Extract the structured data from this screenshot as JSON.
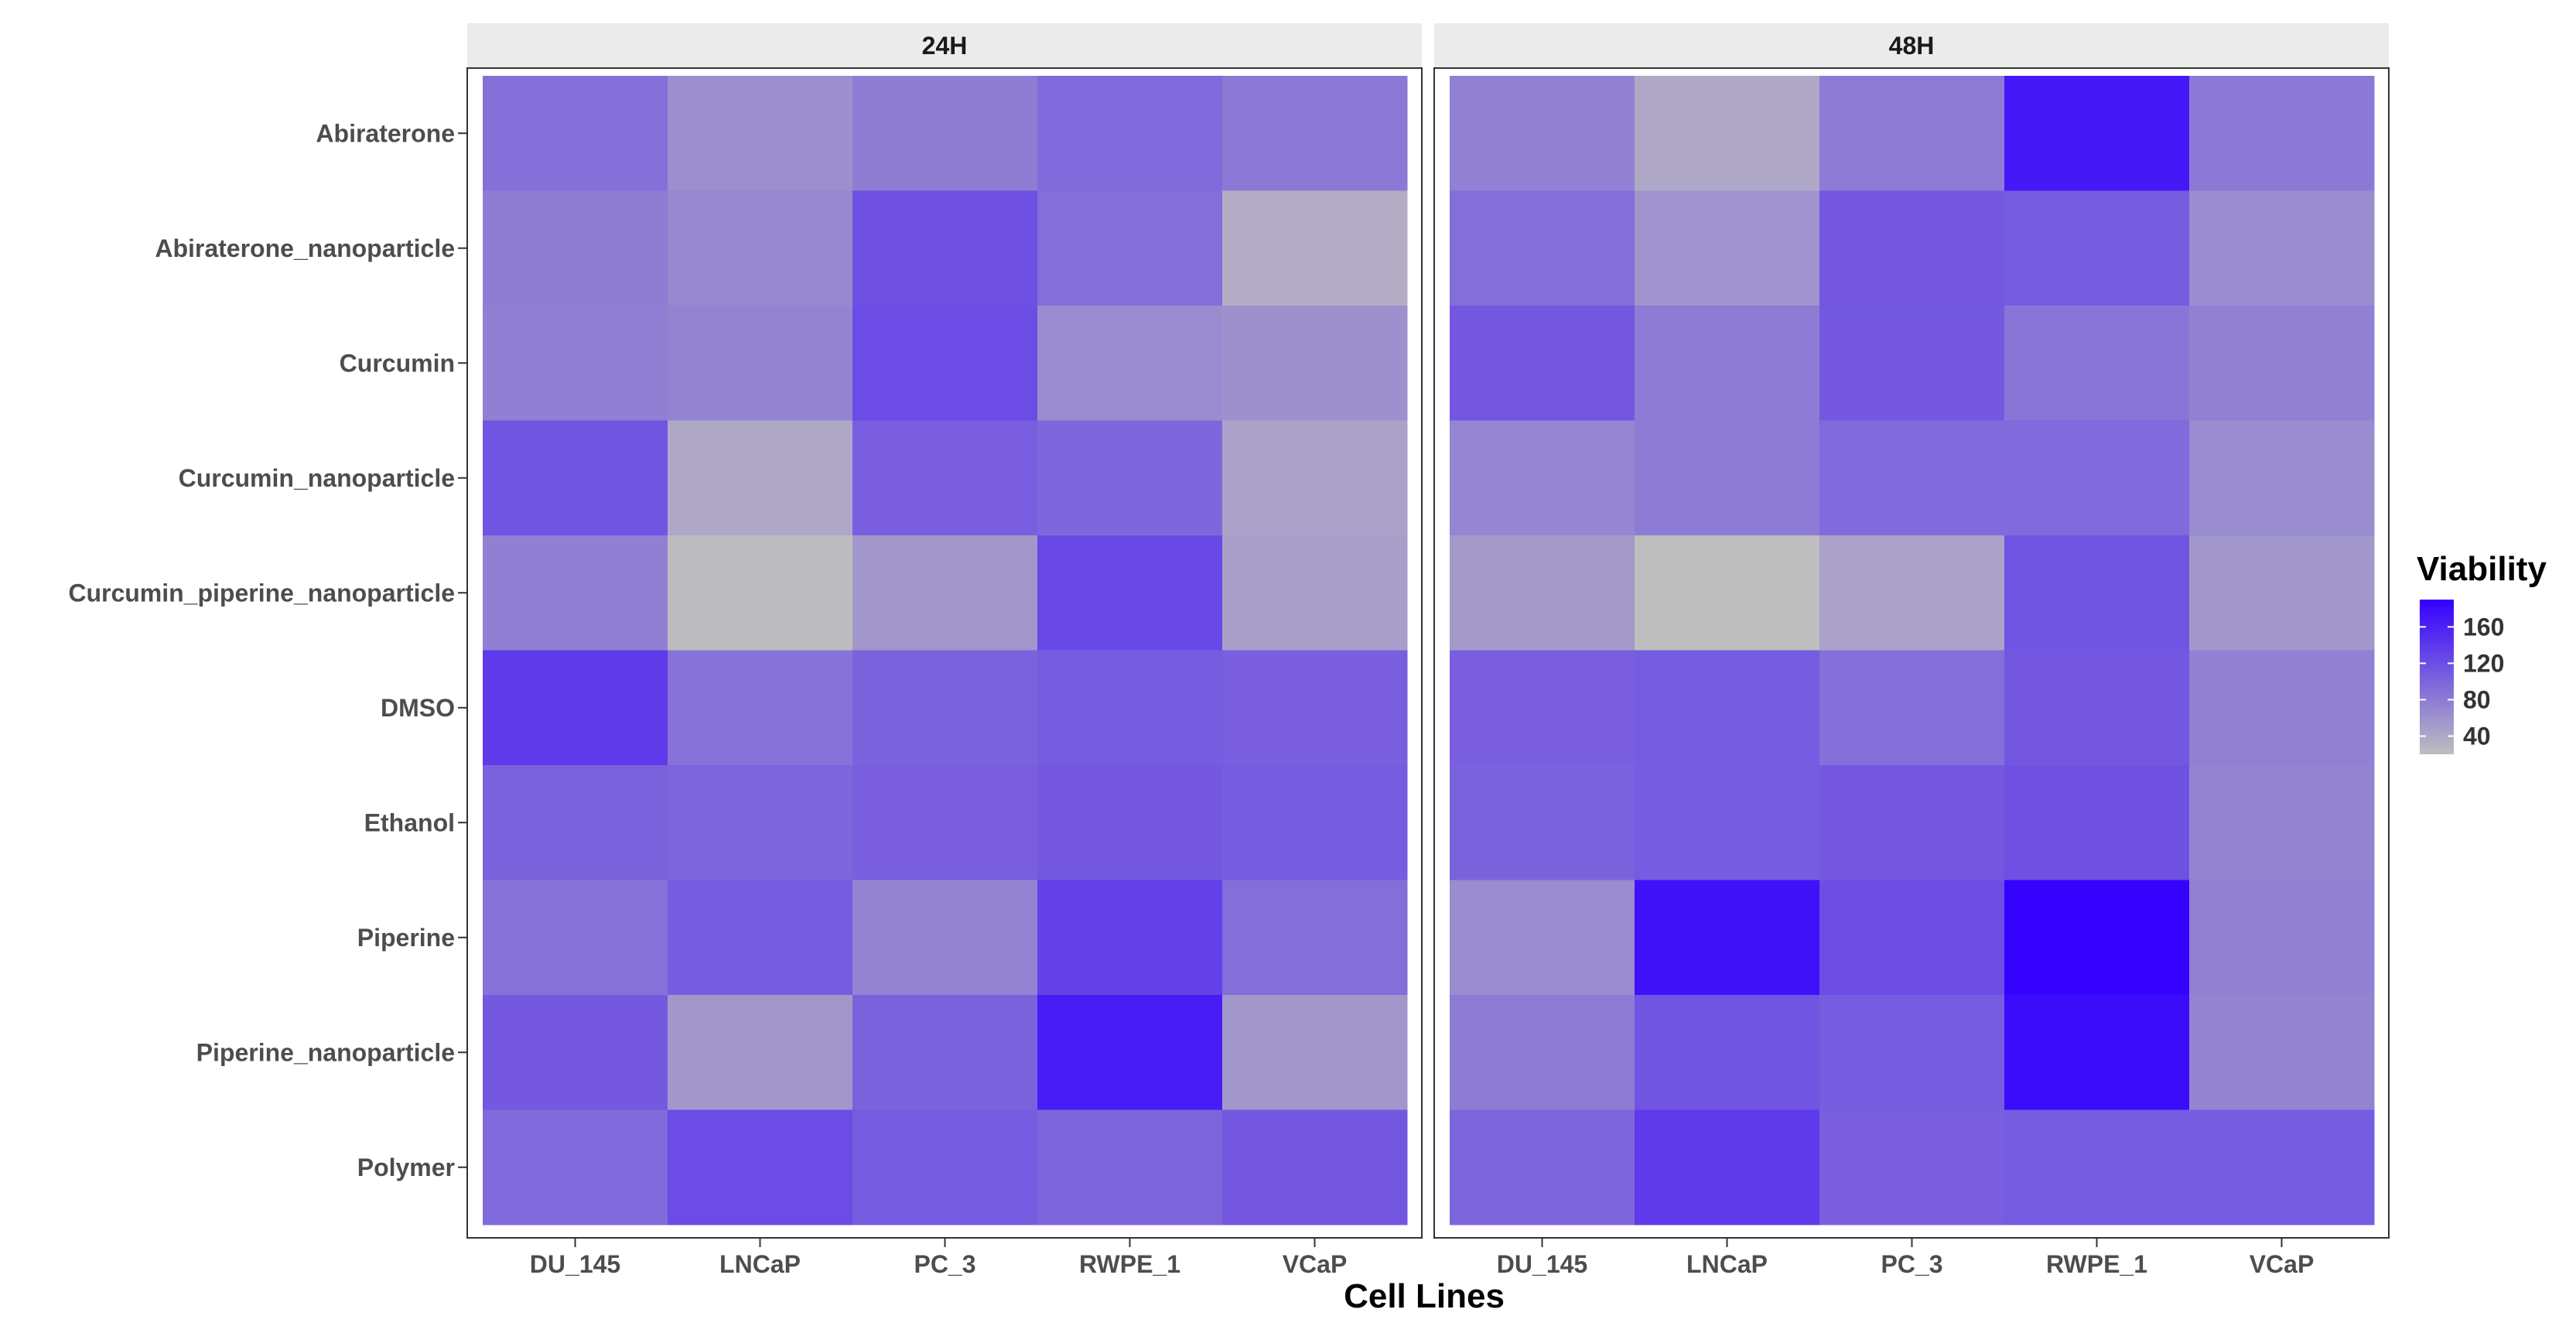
{
  "chart_data": {
    "type": "heatmap",
    "xlabel": "Cell Lines",
    "ylabel": "",
    "panels": [
      "24H",
      "48H"
    ],
    "x_categories": [
      "DU_145",
      "LNCaP",
      "PC_3",
      "RWPE_1",
      "VCaP"
    ],
    "y_categories": [
      "Abiraterone",
      "Abiraterone_nanoparticle",
      "Curcumin",
      "Curcumin_nanoparticle",
      "Curcumin_piperine_nanoparticle",
      "DMSO",
      "Ethanol",
      "Piperine",
      "Piperine_nanoparticle",
      "Polymer"
    ],
    "values": {
      "24H": [
        [
          90,
          62,
          78,
          95,
          82
        ],
        [
          78,
          68,
          118,
          92,
          35
        ],
        [
          76,
          72,
          122,
          65,
          60
        ],
        [
          115,
          40,
          105,
          98,
          45
        ],
        [
          76,
          22,
          55,
          125,
          48
        ],
        [
          138,
          88,
          102,
          108,
          105
        ],
        [
          102,
          100,
          105,
          110,
          108
        ],
        [
          88,
          108,
          72,
          132,
          92
        ],
        [
          110,
          55,
          102,
          165,
          55
        ],
        [
          95,
          122,
          108,
          100,
          112
        ]
      ],
      "48H": [
        [
          75,
          40,
          80,
          168,
          82
        ],
        [
          92,
          58,
          112,
          108,
          65
        ],
        [
          112,
          80,
          110,
          85,
          75
        ],
        [
          70,
          80,
          95,
          95,
          65
        ],
        [
          52,
          20,
          45,
          115,
          55
        ],
        [
          105,
          108,
          90,
          112,
          75
        ],
        [
          102,
          108,
          112,
          118,
          72
        ],
        [
          65,
          175,
          120,
          188,
          75
        ],
        [
          80,
          115,
          108,
          180,
          72
        ],
        [
          100,
          138,
          105,
          108,
          108
        ]
      ]
    },
    "legend": {
      "title": "Viability",
      "ticks": [
        40,
        80,
        120,
        160
      ],
      "range": [
        20,
        190
      ],
      "position": "right"
    },
    "colors": {
      "low": "#bebebe",
      "high": "#3300ff",
      "strip_bg": "#ebebeb",
      "panel_border": "#333333"
    }
  }
}
